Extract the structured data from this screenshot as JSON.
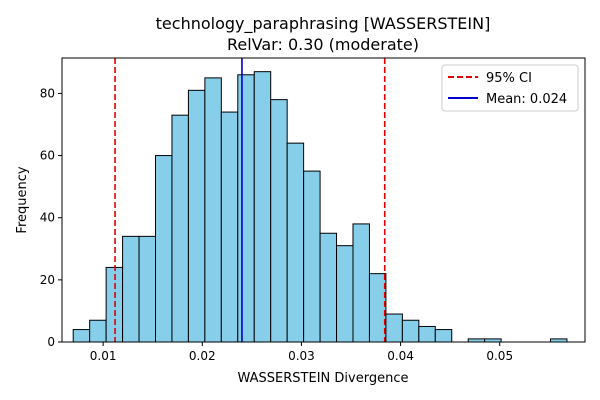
{
  "chart_data": {
    "type": "bar",
    "title": "technology_paraphrasing [WASSERSTEIN]",
    "subtitle": "RelVar: 0.30 (moderate)",
    "xlabel": "WASSERSTEIN Divergence",
    "ylabel": "Frequency",
    "xlim": [
      0.00585,
      0.0586
    ],
    "ylim": [
      0,
      91.4
    ],
    "x_ticks": [
      "0.01",
      "0.02",
      "0.03",
      "0.04",
      "0.05"
    ],
    "x_tick_values": [
      0.01,
      0.02,
      0.03,
      0.04,
      0.05
    ],
    "y_ticks": [
      "0",
      "20",
      "40",
      "60",
      "80"
    ],
    "y_tick_values": [
      0,
      20,
      40,
      60,
      80
    ],
    "bin_edges": [
      0.00698,
      0.00864,
      0.0103,
      0.01196,
      0.01362,
      0.01528,
      0.01694,
      0.0186,
      0.02026,
      0.02192,
      0.02358,
      0.02524,
      0.0269,
      0.02856,
      0.03022,
      0.03188,
      0.03354,
      0.0352,
      0.03686,
      0.03852,
      0.04018,
      0.04184,
      0.0435,
      0.04516,
      0.04682,
      0.04848,
      0.05014,
      0.0518,
      0.05346,
      0.05512,
      0.05678
    ],
    "counts": [
      4,
      7,
      24,
      34,
      34,
      60,
      73,
      81,
      85,
      74,
      86,
      87,
      78,
      64,
      55,
      35,
      31,
      38,
      22,
      9,
      7,
      5,
      4,
      0,
      1,
      1,
      0,
      0,
      0,
      1
    ],
    "bar_color": "#87ceeb",
    "bar_edge_color": "#000000",
    "lines": [
      {
        "name": "95% CI",
        "x": 0.0112,
        "color": "#e00000",
        "style": "dashed"
      },
      {
        "name": "",
        "x": 0.0384,
        "color": "#e00000",
        "style": "dashed"
      },
      {
        "name": "Mean: 0.024",
        "x": 0.024,
        "color": "#0000cc",
        "style": "solid"
      }
    ],
    "legend": {
      "placement": "top-right",
      "entries": [
        {
          "label": "95% CI",
          "color": "#e00000",
          "style": "dashed"
        },
        {
          "label": "Mean: 0.024",
          "color": "#0000cc",
          "style": "solid"
        }
      ]
    },
    "grid": false
  }
}
